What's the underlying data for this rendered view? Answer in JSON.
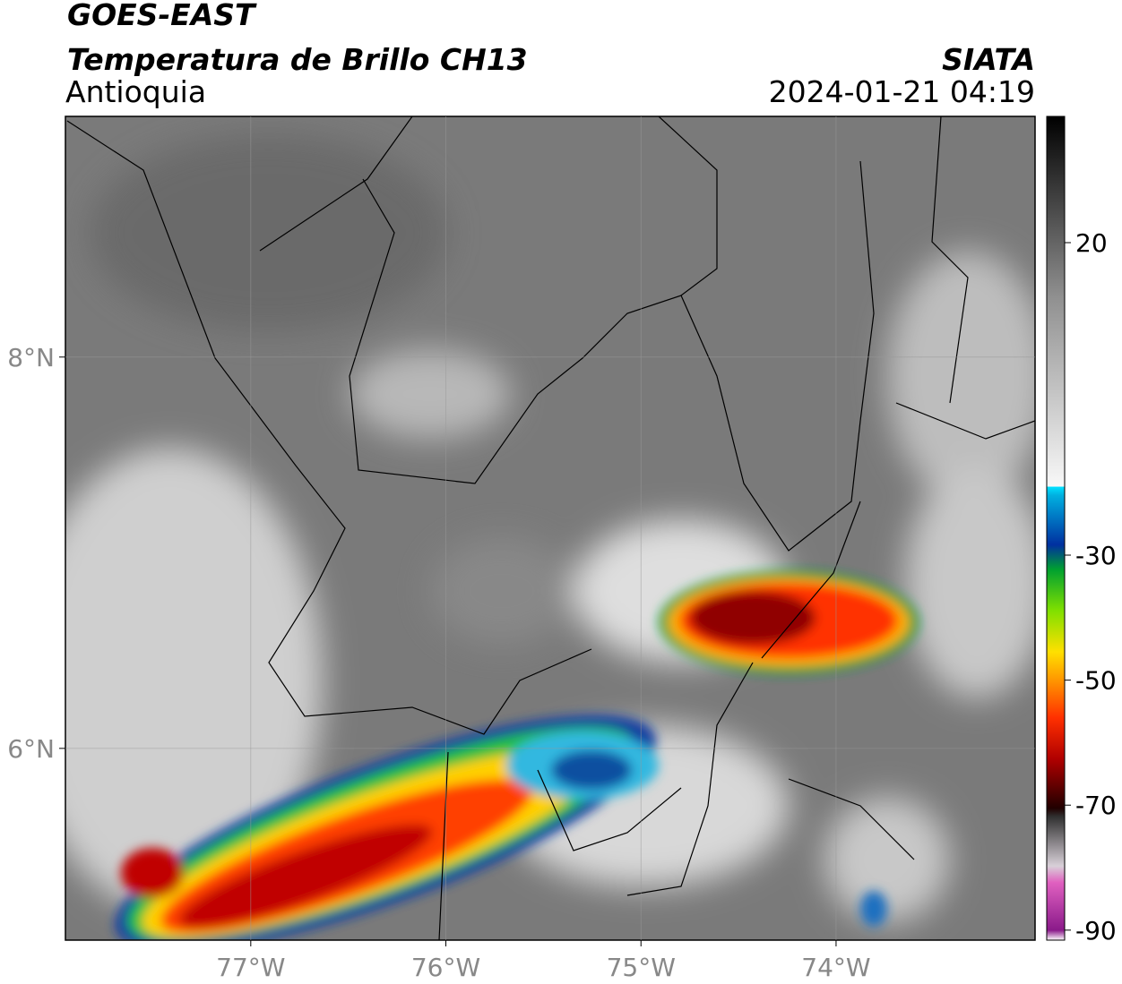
{
  "header": {
    "satellite": "GOES-EAST",
    "product": "Temperatura de Brillo CH13",
    "region": "Antioquia",
    "source": "SIATA",
    "datetime": "2024-01-21 04:19"
  },
  "map": {
    "xlim": [
      -77.95,
      -72.98
    ],
    "ylim": [
      5.02,
      9.23
    ],
    "xticks": [
      {
        "value": -77,
        "label": "77°W"
      },
      {
        "value": -76,
        "label": "76°W"
      },
      {
        "value": -75,
        "label": "75°W"
      },
      {
        "value": -74,
        "label": "74°W"
      }
    ],
    "yticks": [
      {
        "value": 8,
        "label": "8°N"
      },
      {
        "value": 6,
        "label": "6°N"
      }
    ]
  },
  "colorbar": {
    "lim": [
      -91.6,
      40.2
    ],
    "ticks": [
      20,
      -30,
      -50,
      -70,
      -90
    ]
  }
}
